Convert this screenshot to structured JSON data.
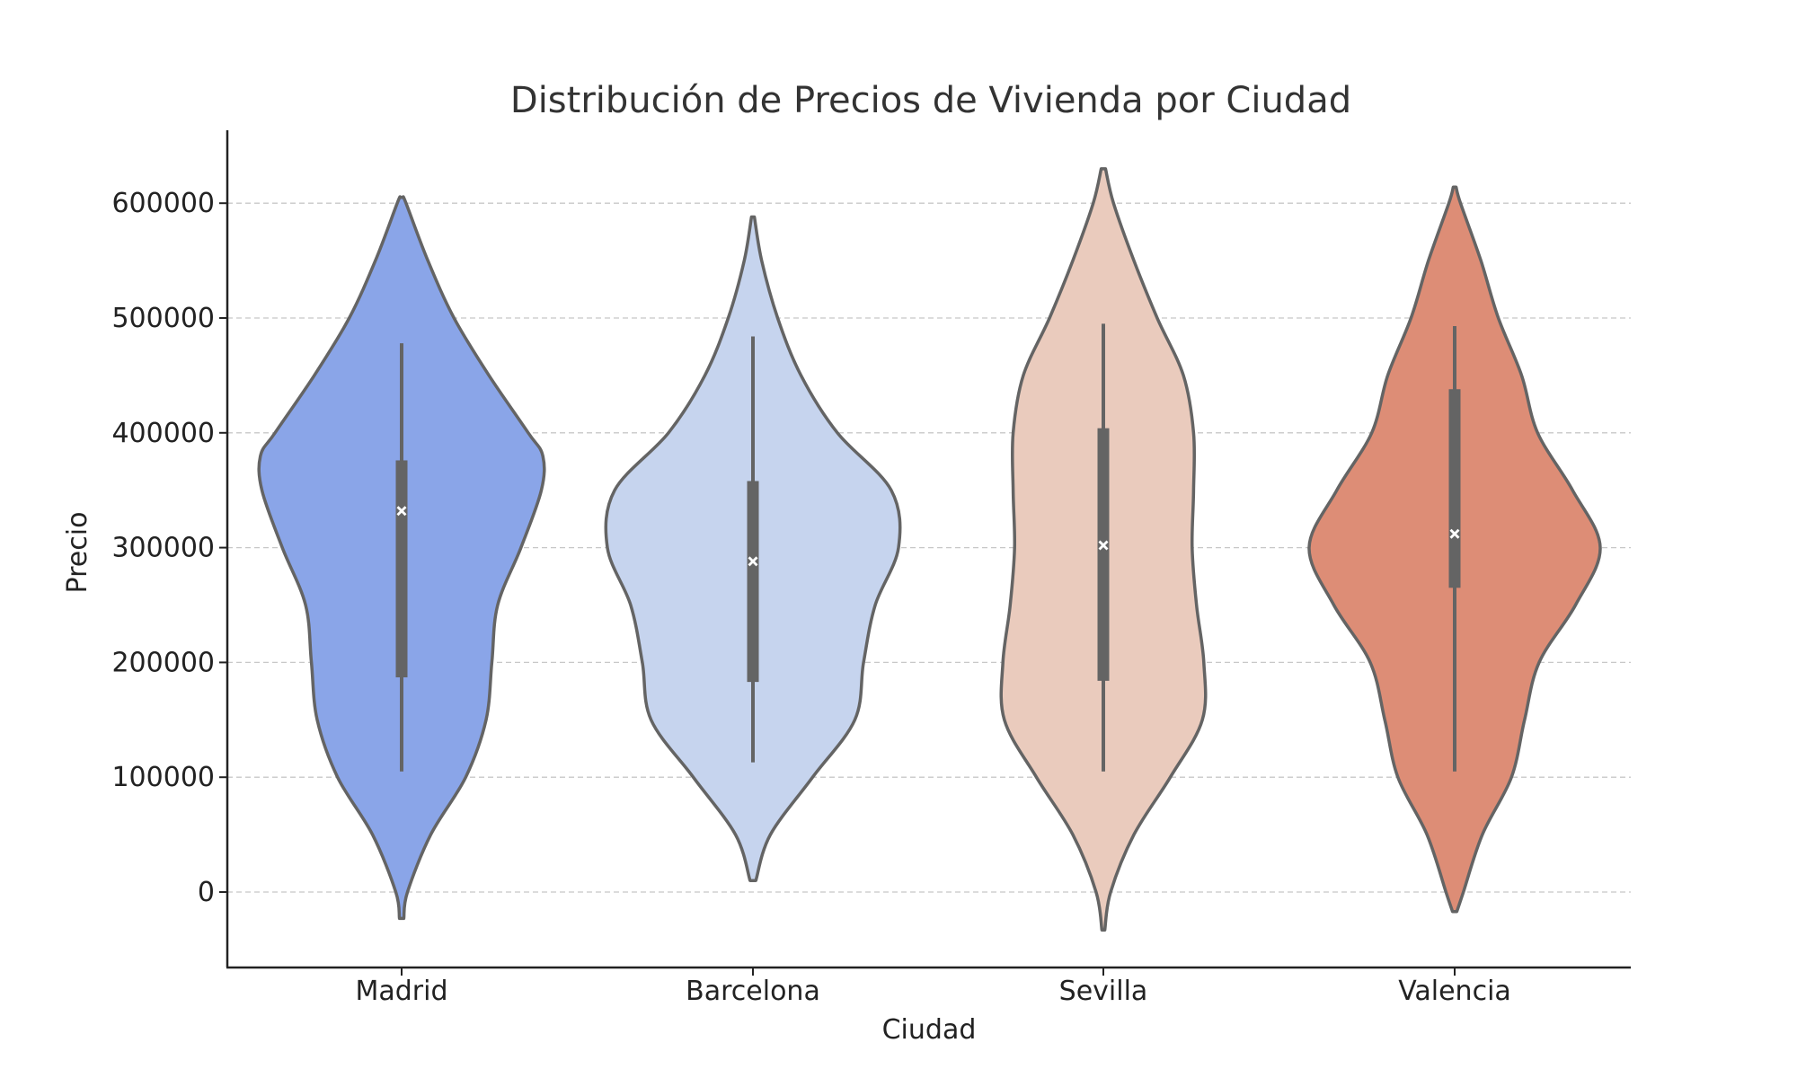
{
  "chart_data": {
    "type": "violin",
    "title": "Distribución de Precios de Vivienda por Ciudad",
    "xlabel": "Ciudad",
    "ylabel": "Precio",
    "ylim": [
      -65000,
      665000
    ],
    "yticks": [
      0,
      100000,
      200000,
      300000,
      400000,
      500000,
      600000
    ],
    "ytick_labels": [
      "0",
      "100000",
      "200000",
      "300000",
      "400000",
      "500000",
      "600000"
    ],
    "grid": "horizontal dashed",
    "categories": [
      "Madrid",
      "Barcelona",
      "Sevilla",
      "Valencia"
    ],
    "colors": [
      "#8aa5e8",
      "#c6d4ee",
      "#eacbbd",
      "#dd8d76"
    ],
    "outline_color": "#646464",
    "series": [
      {
        "category": "Madrid",
        "min": 105000,
        "q1": 187000,
        "median": 332000,
        "q3": 376000,
        "max": 478000,
        "density": [
          [
            -23000,
            0.015
          ],
          [
            0,
            0.04
          ],
          [
            50000,
            0.2
          ],
          [
            100000,
            0.44
          ],
          [
            150000,
            0.58
          ],
          [
            200000,
            0.62
          ],
          [
            250000,
            0.66
          ],
          [
            300000,
            0.82
          ],
          [
            350000,
            0.96
          ],
          [
            380000,
            0.97
          ],
          [
            400000,
            0.87
          ],
          [
            450000,
            0.6
          ],
          [
            500000,
            0.36
          ],
          [
            550000,
            0.18
          ],
          [
            600000,
            0.03
          ],
          [
            605000,
            0.01
          ]
        ]
      },
      {
        "category": "Barcelona",
        "min": 113000,
        "q1": 183000,
        "median": 288000,
        "q3": 358000,
        "max": 484000,
        "density": [
          [
            10000,
            0.02
          ],
          [
            50000,
            0.12
          ],
          [
            100000,
            0.41
          ],
          [
            150000,
            0.7
          ],
          [
            200000,
            0.76
          ],
          [
            250000,
            0.84
          ],
          [
            300000,
            1.0
          ],
          [
            350000,
            0.95
          ],
          [
            400000,
            0.58
          ],
          [
            450000,
            0.33
          ],
          [
            500000,
            0.17
          ],
          [
            550000,
            0.06
          ],
          [
            588000,
            0.01
          ]
        ]
      },
      {
        "category": "Sevilla",
        "min": 105000,
        "q1": 184000,
        "median": 302000,
        "q3": 404000,
        "max": 495000,
        "density": [
          [
            -33000,
            0.01
          ],
          [
            0,
            0.05
          ],
          [
            50000,
            0.21
          ],
          [
            100000,
            0.46
          ],
          [
            150000,
            0.68
          ],
          [
            200000,
            0.69
          ],
          [
            250000,
            0.64
          ],
          [
            300000,
            0.61
          ],
          [
            350000,
            0.62
          ],
          [
            400000,
            0.62
          ],
          [
            450000,
            0.55
          ],
          [
            500000,
            0.37
          ],
          [
            550000,
            0.21
          ],
          [
            600000,
            0.07
          ],
          [
            630000,
            0.015
          ]
        ]
      },
      {
        "category": "Valencia",
        "min": 105000,
        "q1": 265000,
        "median": 312000,
        "q3": 438000,
        "max": 493000,
        "density": [
          [
            -17000,
            0.015
          ],
          [
            0,
            0.06
          ],
          [
            50000,
            0.19
          ],
          [
            100000,
            0.39
          ],
          [
            150000,
            0.48
          ],
          [
            200000,
            0.58
          ],
          [
            250000,
            0.83
          ],
          [
            300000,
            1.0
          ],
          [
            350000,
            0.81
          ],
          [
            400000,
            0.57
          ],
          [
            450000,
            0.46
          ],
          [
            500000,
            0.3
          ],
          [
            550000,
            0.18
          ],
          [
            600000,
            0.04
          ],
          [
            614000,
            0.01
          ]
        ]
      }
    ]
  }
}
